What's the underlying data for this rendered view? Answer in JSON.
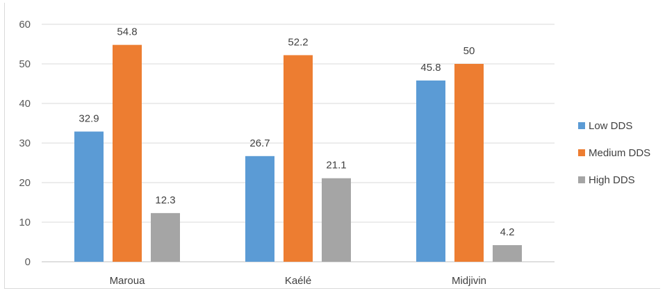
{
  "chart_data": {
    "type": "bar",
    "title": "",
    "xlabel": "",
    "ylabel": "",
    "categories": [
      "Maroua",
      "Kaélé",
      "Midjivin"
    ],
    "series": [
      {
        "name": "Low DDS",
        "values": [
          32.9,
          26.7,
          45.8
        ],
        "color": "#5b9bd5"
      },
      {
        "name": "Medium DDS",
        "values": [
          54.8,
          52.2,
          50
        ],
        "color": "#ed7d31"
      },
      {
        "name": "High DDS",
        "values": [
          12.3,
          21.1,
          4.2
        ],
        "color": "#a5a5a5"
      }
    ],
    "ylim": [
      0,
      60
    ],
    "yticks": [
      0,
      10,
      20,
      30,
      40,
      50,
      60
    ],
    "grid": true,
    "legend": "right"
  }
}
